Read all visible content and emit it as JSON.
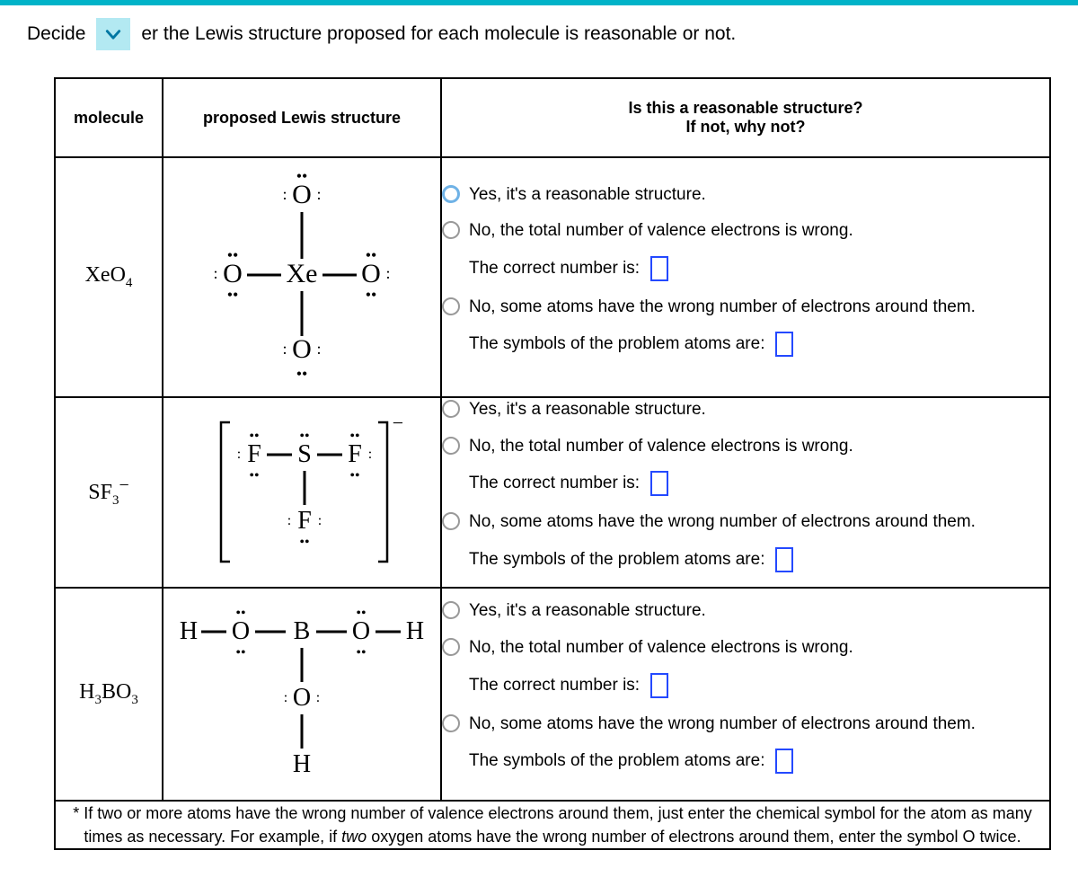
{
  "prompt": {
    "before": "Decide",
    "after": "er the Lewis structure proposed for each molecule is reasonable or not."
  },
  "headers": {
    "molecule": "molecule",
    "lewis": "proposed Lewis structure",
    "question_line1": "Is this a reasonable structure?",
    "question_line2": "If not, why not?"
  },
  "option_labels": {
    "yes": "Yes, it's a reasonable structure.",
    "no_total": "No, the total number of valence electrons is wrong.",
    "correct_number": "The correct number is:",
    "no_atoms": "No, some atoms have the wrong number of electrons around them.",
    "problem_atoms": "The symbols of the problem atoms are:"
  },
  "rows": [
    {
      "formula_html": "XeO<sub>4</sub>",
      "selected": "yes",
      "lewis": {
        "type": "cross",
        "center": "Xe",
        "top": "O",
        "bottom": "O",
        "left": "O",
        "right": "O",
        "lone_pairs_outer": 3,
        "bracket": false
      }
    },
    {
      "formula_html": "SF<sub>3</sub><sup>&#8722;</sup>",
      "selected": null,
      "lewis": {
        "type": "T",
        "center": "S",
        "left": "F",
        "right": "F",
        "bottom": "F",
        "center_lone_pairs": 1,
        "outer_lone_pairs": 3,
        "bracket": true,
        "charge": "−"
      }
    },
    {
      "formula_html": "H<sub>3</sub>BO<sub>3</sub>",
      "selected": null,
      "lewis": {
        "type": "boric",
        "center": "B"
      }
    }
  ],
  "footnote": "* If two or more atoms have the wrong number of valence electrons around them, just enter the chemical symbol for the atom as many times as necessary. For example, if two oxygen atoms have the wrong number of electrons around them, enter the symbol O twice.",
  "footnote_italic_word": "two",
  "colors": {
    "topbar": "#00b3c8",
    "chevron_bg": "#b3e9f2",
    "chevron_stroke": "#0077a3",
    "radio_selected": "#6fb2e6",
    "input_border": "#2449ff"
  }
}
